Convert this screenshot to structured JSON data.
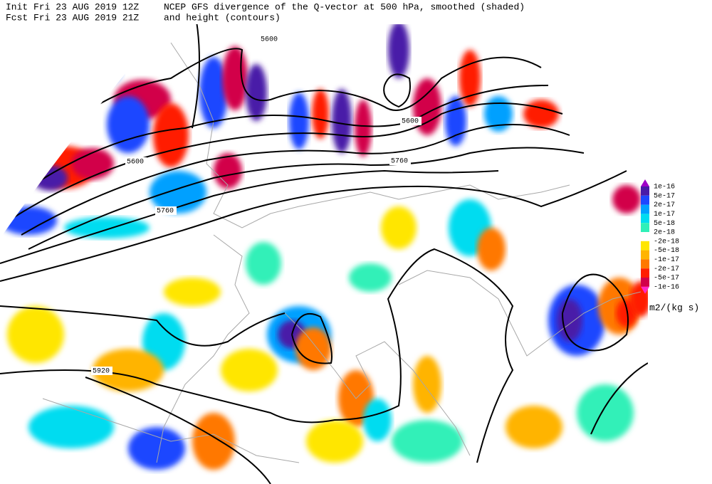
{
  "header": {
    "init": "Init  Fri 23 AUG 2019 12Z",
    "fcst": "Fcst Fri 23 AUG 2019 21Z",
    "title": "NCEP GFS divergence of the Q-vector at 500 hPa, smoothed (shaded)",
    "subtitle": "and height (contours)"
  },
  "colorbar": {
    "labels": [
      "1e-16",
      "5e-17",
      "2e-17",
      "1e-17",
      "5e-18",
      "2e-18",
      "-2e-18",
      "-5e-18",
      "-1e-17",
      "-2e-17",
      "-5e-17",
      "-1e-16"
    ],
    "colors": [
      "#a000c8",
      "#4a1aa8",
      "#1e46ff",
      "#00a0ff",
      "#00dcf0",
      "#30f0b8",
      "#ffffff",
      "#ffe600",
      "#ffb400",
      "#ff7800",
      "#ff1e00",
      "#d2004a",
      "#ff28c8"
    ],
    "units": "m2/(kg s)"
  },
  "contour_labels": [
    "5600",
    "5600",
    "5600",
    "5760",
    "5760",
    "5920"
  ]
}
